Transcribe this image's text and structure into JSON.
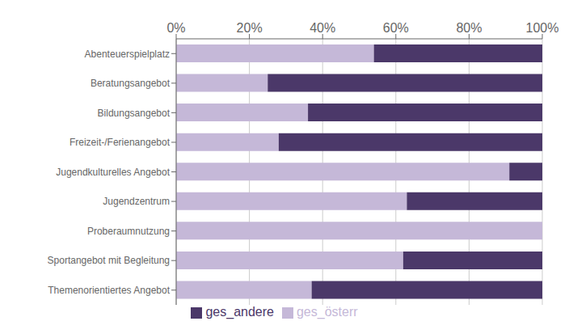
{
  "chart_data": {
    "type": "bar",
    "orientation": "horizontal",
    "stacked": true,
    "categories": [
      "Abenteuerspielplatz",
      "Beratungsangebot",
      "Bildungsangebot",
      "Freizeit-/Ferienangebot",
      "Jugendkulturelles Angebot",
      "Jugendzentrum",
      "Proberaumnutzung",
      "Sportangebot mit Begleitung",
      "Themenorientiertes Angebot"
    ],
    "series": [
      {
        "name": "ges_österr",
        "color": "#c5b8d8",
        "values": [
          54,
          25,
          36,
          28,
          91,
          63,
          100,
          62,
          37
        ]
      },
      {
        "name": "ges_andere",
        "color": "#4b3869",
        "values": [
          46,
          75,
          64,
          72,
          9,
          37,
          0,
          38,
          63
        ]
      }
    ],
    "xlim": [
      0,
      100
    ],
    "xticks": [
      {
        "value": 0,
        "label": "0%"
      },
      {
        "value": 20,
        "label": "20%"
      },
      {
        "value": 40,
        "label": "40%"
      },
      {
        "value": 60,
        "label": "60%"
      },
      {
        "value": 80,
        "label": "80%"
      },
      {
        "value": 100,
        "label": "100%"
      }
    ],
    "grid": true,
    "legend": "bottom"
  }
}
